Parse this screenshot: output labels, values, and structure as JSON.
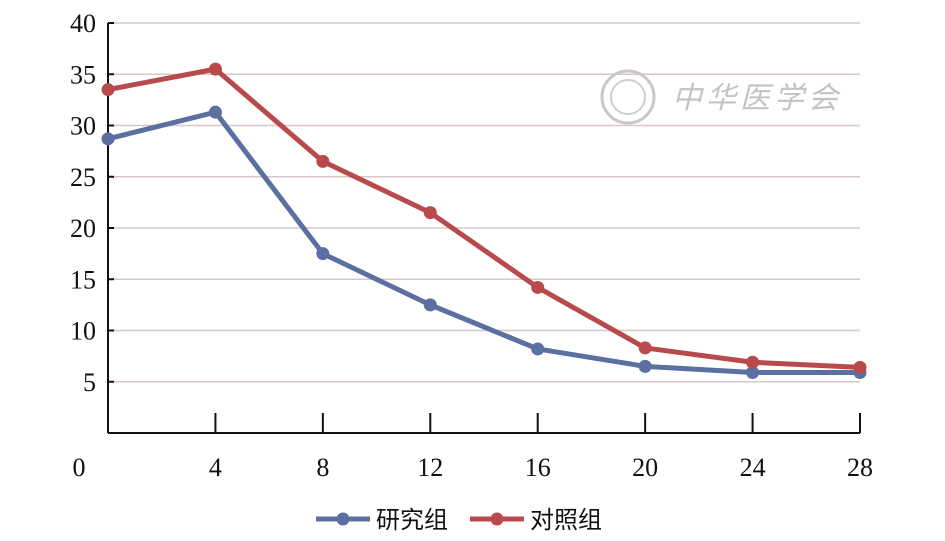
{
  "chart_data": {
    "type": "line",
    "x": [
      0,
      4,
      8,
      12,
      16,
      20,
      24,
      28
    ],
    "xticks": [
      "0",
      "4",
      "8",
      "12",
      "16",
      "20",
      "24",
      "28"
    ],
    "yticks": [
      "5",
      "10",
      "15",
      "20",
      "25",
      "30",
      "35",
      "40"
    ],
    "xlim": [
      0,
      28
    ],
    "ylim": [
      0,
      40
    ],
    "grid": "horizontal",
    "legend": "bottom",
    "series": [
      {
        "name": "研究组",
        "color": "#5b6fa0",
        "values": [
          28.7,
          31.3,
          17.5,
          12.5,
          8.2,
          6.5,
          5.9,
          5.9
        ]
      },
      {
        "name": "对照组",
        "color": "#b84a4c",
        "values": [
          33.5,
          35.5,
          26.5,
          21.5,
          14.2,
          8.3,
          6.9,
          6.4
        ]
      }
    ]
  },
  "watermark": {
    "text": "中华医学会"
  }
}
